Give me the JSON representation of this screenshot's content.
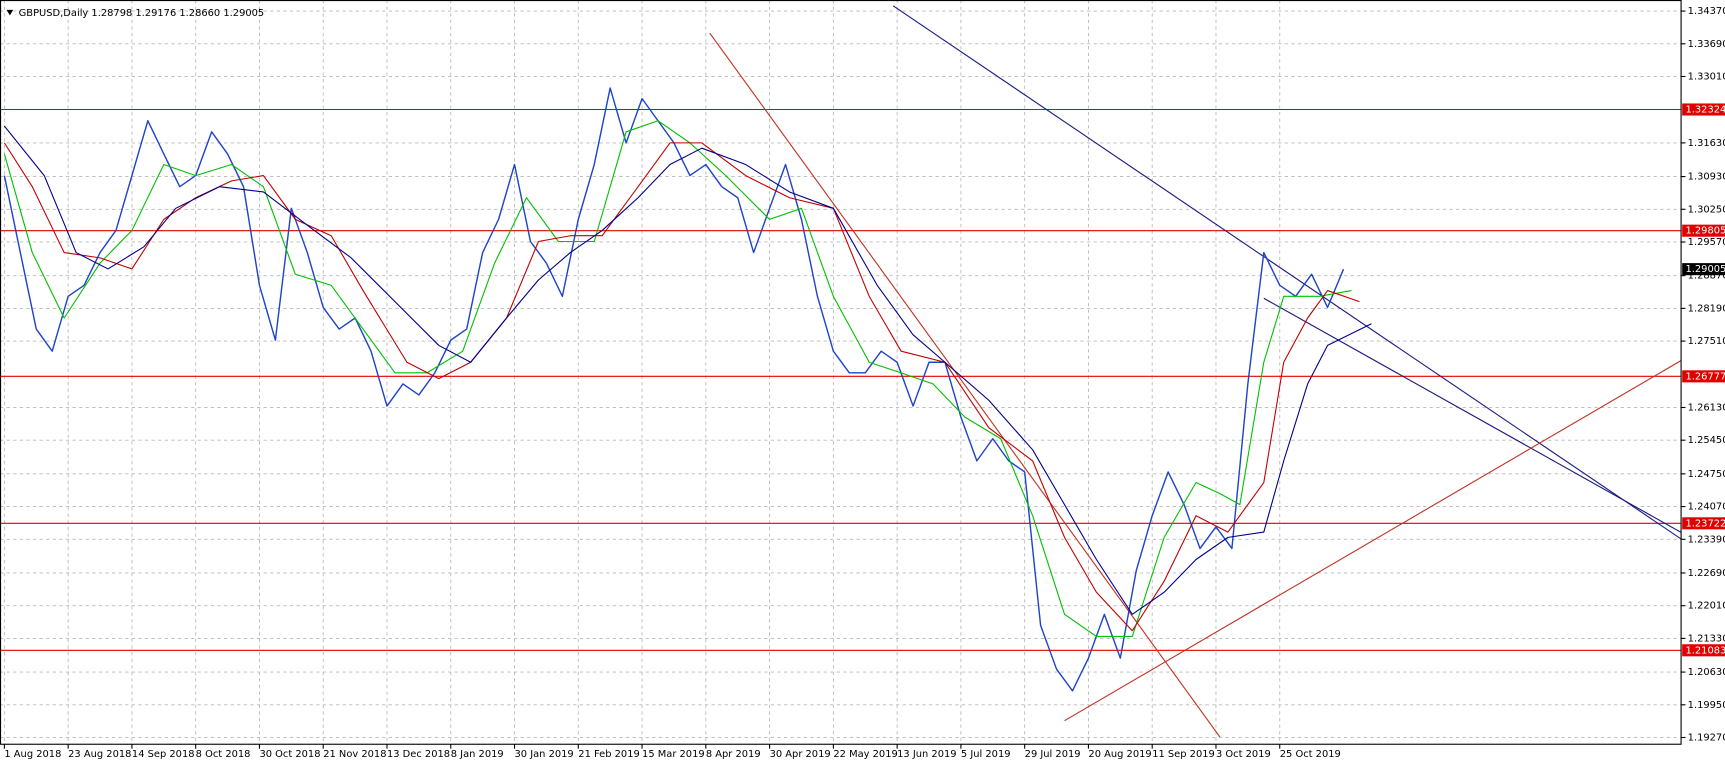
{
  "chart_data": {
    "type": "line",
    "title": "GBPUSD,Daily 1.28798 1.29176 1.28660 1.29005",
    "xlim": [
      -1.1,
      420.7
    ],
    "ylim": [
      1.1913,
      1.346
    ],
    "xticks": [
      {
        "value": 0,
        "label": "1 Aug 2018"
      },
      {
        "value": 16,
        "label": "23 Aug 2018"
      },
      {
        "value": 32,
        "label": "14 Sep 2018"
      },
      {
        "value": 48,
        "label": "8 Oct 2018"
      },
      {
        "value": 64,
        "label": "30 Oct 2018"
      },
      {
        "value": 80,
        "label": "21 Nov 2018"
      },
      {
        "value": 96,
        "label": "13 Dec 2018"
      },
      {
        "value": 112,
        "label": "8 Jan 2019"
      },
      {
        "value": 128,
        "label": "30 Jan 2019"
      },
      {
        "value": 144,
        "label": "21 Feb 2019"
      },
      {
        "value": 160,
        "label": "15 Mar 2019"
      },
      {
        "value": 176,
        "label": "8 Apr 2019"
      },
      {
        "value": 192,
        "label": "30 Apr 2019"
      },
      {
        "value": 208,
        "label": "22 May 2019"
      },
      {
        "value": 224,
        "label": "13 Jun 2019"
      },
      {
        "value": 240,
        "label": "5 Jul 2019"
      },
      {
        "value": 256,
        "label": "29 Jul 2019"
      },
      {
        "value": 272,
        "label": "20 Aug 2019"
      },
      {
        "value": 288,
        "label": "11 Sep 2019"
      },
      {
        "value": 304,
        "label": "3 Oct 2019"
      },
      {
        "value": 320,
        "label": "25 Oct 2019"
      }
    ],
    "yticks": [
      {
        "value": 1.3437,
        "label": "1.34370"
      },
      {
        "value": 1.3369,
        "label": "1.33690"
      },
      {
        "value": 1.3301,
        "label": "1.33010"
      },
      {
        "value": 1.3163,
        "label": "1.31630"
      },
      {
        "value": 1.3093,
        "label": "1.30930"
      },
      {
        "value": 1.3025,
        "label": "1.30250"
      },
      {
        "value": 1.2957,
        "label": "1.29570"
      },
      {
        "value": 1.2887,
        "label": "1.28870"
      },
      {
        "value": 1.2819,
        "label": "1.28190"
      },
      {
        "value": 1.2751,
        "label": "1.27510"
      },
      {
        "value": 1.2613,
        "label": "1.26130"
      },
      {
        "value": 1.2545,
        "label": "1.25450"
      },
      {
        "value": 1.2475,
        "label": "1.24750"
      },
      {
        "value": 1.2407,
        "label": "1.24070"
      },
      {
        "value": 1.2339,
        "label": "1.23390"
      },
      {
        "value": 1.2269,
        "label": "1.22690"
      },
      {
        "value": 1.2201,
        "label": "1.22010"
      },
      {
        "value": 1.2133,
        "label": "1.21330"
      },
      {
        "value": 1.2063,
        "label": "1.20630"
      },
      {
        "value": 1.1995,
        "label": "1.19950"
      },
      {
        "value": 1.1927,
        "label": "1.19270"
      }
    ],
    "grid": true,
    "levels": [
      1.32324,
      1.29805,
      1.26777,
      1.23722,
      1.21083
    ],
    "level_color": "#e00000",
    "series": [
      {
        "color": "#1f45c8",
        "x": [
          0,
          4,
          8,
          12,
          16,
          20,
          24,
          28,
          32,
          36,
          40,
          44,
          48,
          52,
          56,
          60,
          64,
          68,
          72,
          76,
          80,
          84,
          88,
          92,
          96,
          100,
          104,
          108,
          112,
          116,
          120,
          124,
          128,
          132,
          136,
          140,
          144,
          148,
          152,
          156,
          160,
          164,
          168,
          172,
          176,
          180,
          184,
          188,
          192,
          196,
          200,
          204,
          208,
          212,
          216,
          220,
          224,
          228,
          232,
          236,
          240,
          244,
          248,
          252,
          256,
          260,
          264,
          268,
          272,
          276,
          280,
          284,
          288,
          292,
          296,
          300,
          304,
          308,
          312,
          316,
          320,
          324,
          328,
          332,
          336
        ],
        "values": [
          1.3095,
          1.2935,
          1.2776,
          1.273,
          1.2844,
          1.2867,
          1.2935,
          1.2981,
          1.3095,
          1.3209,
          1.314,
          1.3072,
          1.3095,
          1.3186,
          1.314,
          1.3072,
          1.2867,
          1.2753,
          1.3027,
          1.2935,
          1.2821,
          1.2776,
          1.2799,
          1.273,
          1.2616,
          1.2662,
          1.2639,
          1.2685,
          1.2753,
          1.2776,
          1.2935,
          1.3004,
          1.3118,
          1.2958,
          1.2913,
          1.2844,
          1.3004,
          1.3118,
          1.3277,
          1.3163,
          1.3255,
          1.3209,
          1.3163,
          1.3095,
          1.3118,
          1.3072,
          1.3049,
          1.2935,
          1.3027,
          1.3118,
          1.3004,
          1.2844,
          1.273,
          1.2685,
          1.2685,
          1.273,
          1.2707,
          1.2616,
          1.2707,
          1.2707,
          1.2593,
          1.2502,
          1.2548,
          1.2502,
          1.2479,
          1.216,
          1.2069,
          1.2024,
          1.2092,
          1.2183,
          1.2092,
          1.2274,
          1.2388,
          1.2479,
          1.2411,
          1.232,
          1.2365,
          1.232,
          1.2662,
          1.2935,
          1.2867,
          1.2844,
          1.289,
          1.2821,
          1.29005
        ]
      },
      {
        "color": "#00c000",
        "x": [
          0,
          7,
          15,
          24,
          32,
          40,
          48,
          57,
          65,
          73,
          82,
          90,
          98,
          106,
          115,
          123,
          131,
          139,
          148,
          156,
          164,
          172,
          181,
          192,
          200,
          208,
          217,
          225,
          233,
          241,
          250,
          258,
          266,
          274,
          283,
          291,
          299,
          305,
          310,
          316,
          321,
          330,
          338
        ],
        "values": [
          1.314,
          1.2935,
          1.2799,
          1.2913,
          1.2981,
          1.3118,
          1.3095,
          1.3118,
          1.3072,
          1.289,
          1.2867,
          1.2776,
          1.2685,
          1.2685,
          1.273,
          1.2913,
          1.3049,
          1.2958,
          1.2958,
          1.3186,
          1.3209,
          1.3163,
          1.3095,
          1.3004,
          1.3027,
          1.2844,
          1.2707,
          1.2685,
          1.2662,
          1.2593,
          1.2548,
          1.2388,
          1.2183,
          1.2137,
          1.2137,
          1.2343,
          1.2457,
          1.2434,
          1.2411,
          1.2707,
          1.2844,
          1.2844,
          1.2856
        ]
      },
      {
        "color": "#c00000",
        "x": [
          0,
          7,
          15,
          24,
          32,
          40,
          48,
          57,
          65,
          73,
          82,
          90,
          101,
          109,
          117,
          126,
          134,
          142,
          150,
          159,
          167,
          175,
          186,
          197,
          208,
          217,
          225,
          236,
          247,
          258,
          266,
          274,
          283,
          291,
          299,
          307,
          316,
          321,
          327,
          332,
          340
        ],
        "values": [
          1.3163,
          1.3072,
          1.2935,
          1.2924,
          1.2901,
          1.3004,
          1.3049,
          1.3084,
          1.3095,
          1.3004,
          1.297,
          1.2856,
          1.2707,
          1.2673,
          1.2707,
          1.2799,
          1.2958,
          1.297,
          1.297,
          1.3072,
          1.3163,
          1.3163,
          1.3095,
          1.3049,
          1.3027,
          1.2844,
          1.273,
          1.2707,
          1.2571,
          1.2502,
          1.2343,
          1.2229,
          1.2149,
          1.2252,
          1.2388,
          1.2354,
          1.2457,
          1.2707,
          1.2799,
          1.2856,
          1.2833
        ]
      },
      {
        "color": "#00008b",
        "x": [
          0,
          10,
          18,
          26,
          35,
          43,
          54,
          65,
          76,
          87,
          98,
          109,
          117,
          126,
          134,
          142,
          150,
          159,
          167,
          175,
          186,
          197,
          208,
          219,
          228,
          236,
          247,
          258,
          266,
          274,
          283,
          291,
          299,
          307,
          316,
          321,
          327,
          332,
          343
        ],
        "values": [
          1.3198,
          1.3095,
          1.2935,
          1.2901,
          1.2947,
          1.3027,
          1.3072,
          1.3061,
          1.2992,
          1.2924,
          1.2833,
          1.2742,
          1.2707,
          1.2799,
          1.2878,
          1.2935,
          1.2981,
          1.3049,
          1.3118,
          1.3152,
          1.3118,
          1.3061,
          1.3027,
          1.2867,
          1.2764,
          1.2707,
          1.2628,
          1.2525,
          1.2411,
          1.2297,
          1.2183,
          1.2229,
          1.2297,
          1.2343,
          1.2354,
          1.2502,
          1.2662,
          1.2742,
          1.2787
        ]
      }
    ],
    "trendlines": [
      {
        "color": "#1a1a80",
        "x": [
          223,
          421
        ],
        "y": [
          1.3448,
          1.2338
        ]
      },
      {
        "color": "#1a1a80",
        "x": [
          316,
          421
        ],
        "y": [
          1.284,
          1.2352
        ]
      },
      {
        "color": "#c03020",
        "x": [
          177,
          305
        ],
        "y": [
          1.3391,
          1.1928
        ]
      },
      {
        "color": "#c03020",
        "x": [
          266,
          421
        ],
        "y": [
          1.1962,
          1.2712
        ]
      }
    ]
  }
}
